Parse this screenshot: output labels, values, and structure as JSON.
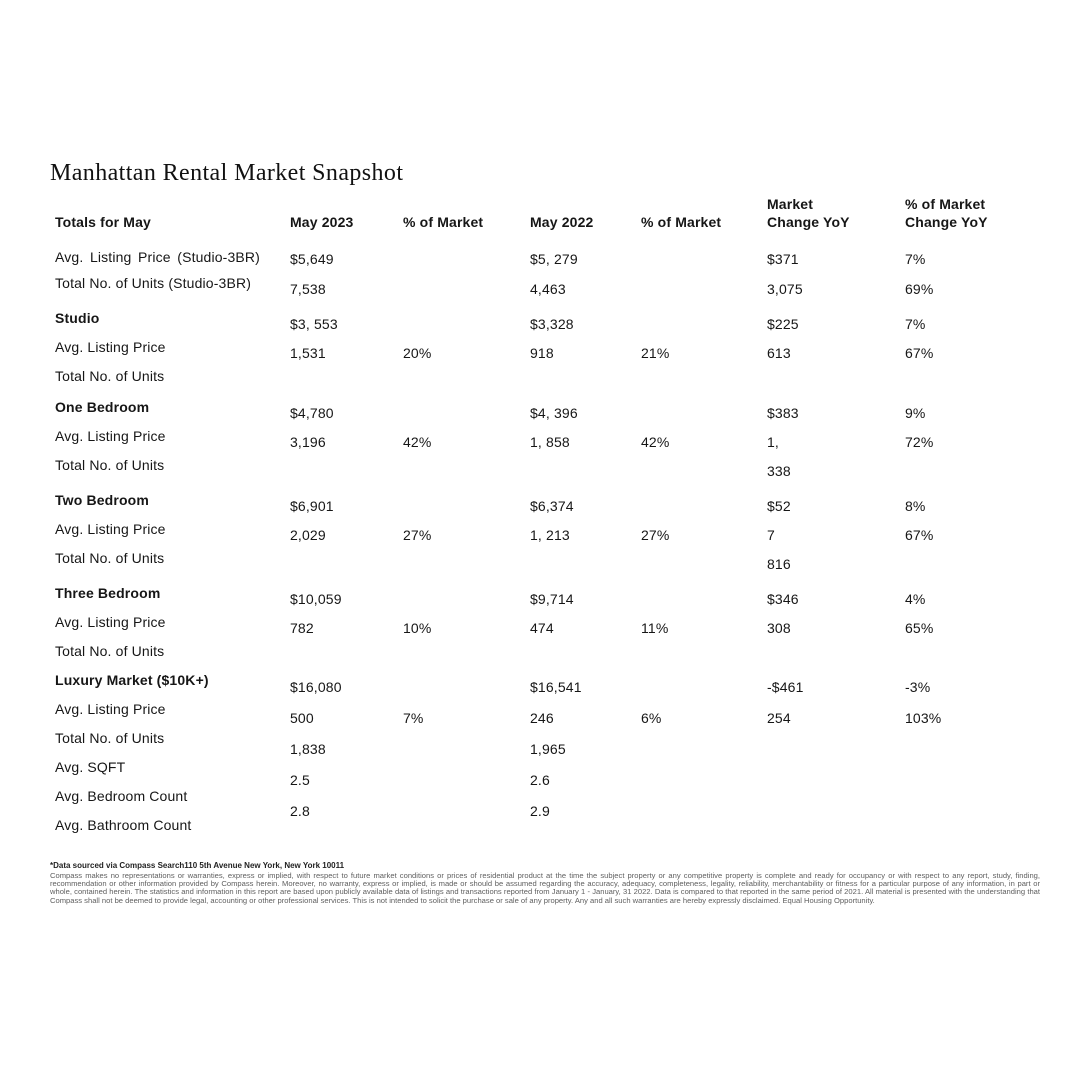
{
  "title": "Manhattan Rental Market Snapshot",
  "header": {
    "label": "Totals for May",
    "may2023": "May 2023",
    "pct2023": "% of Market",
    "may2022": "May 2022",
    "pct2022": "% of Market",
    "change": "Market Change YoY",
    "pct_change": "% of Market Change YoY"
  },
  "totals": {
    "label": "Avg. Listing Price (Studio-3BR) Total No. of Units (Studio-3BR)",
    "rows": [
      [
        "$5,649",
        "",
        "$5, 279",
        "",
        "$371",
        "7%"
      ],
      [
        "7,538",
        "",
        "4,463",
        "",
        "3,075",
        "69%"
      ]
    ]
  },
  "sections": [
    {
      "name": "Studio",
      "labels": [
        "Avg. Listing Price",
        "Total No. of Units"
      ],
      "rows": [
        [
          "$3, 553",
          "",
          "$3,328",
          "",
          "$225",
          "7%"
        ],
        [
          "1,531",
          "20%",
          "918",
          "21%",
          "613",
          "67%"
        ]
      ]
    },
    {
      "name": "One Bedroom",
      "labels": [
        "Avg. Listing Price",
        "Total No. of Units"
      ],
      "rows": [
        [
          "$4,780",
          "",
          "$4, 396",
          "",
          "$383",
          "9%"
        ],
        [
          "3,196",
          "42%",
          "1, 858",
          "42%",
          "1,",
          "72%"
        ],
        [
          "",
          "",
          "",
          "",
          "338",
          ""
        ]
      ]
    },
    {
      "name": "Two Bedroom",
      "labels": [
        "Avg. Listing Price",
        "Total No. of Units"
      ],
      "rows": [
        [
          "$6,901",
          "",
          "$6,374",
          "",
          "$52",
          "8%"
        ],
        [
          "2,029",
          "27%",
          "1, 213",
          "27%",
          "7",
          "67%"
        ],
        [
          "",
          "",
          "",
          "",
          "816",
          ""
        ]
      ]
    },
    {
      "name": "Three Bedroom",
      "labels": [
        "Avg. Listing Price",
        "Total No. of Units"
      ],
      "rows": [
        [
          "$10,059",
          "",
          "$9,714",
          "",
          "$346",
          "4%"
        ],
        [
          "782",
          "10%",
          "474",
          "11%",
          "308",
          "65%"
        ]
      ]
    },
    {
      "name": "Luxury Market ($10K+)",
      "labels": [
        "Avg. Listing Price",
        "Total No. of Units",
        "Avg. SQFT",
        "Avg. Bedroom Count",
        "Avg. Bathroom Count"
      ],
      "rows": [
        [
          "$16,080",
          "",
          "$16,541",
          "",
          "-$461",
          "-3%"
        ],
        [
          "500",
          "7%",
          "246",
          "6%",
          "254",
          "103%"
        ],
        [
          "1,838",
          "",
          "1,965",
          "",
          "",
          ""
        ],
        [
          "2.5",
          "",
          "2.6",
          "",
          "",
          ""
        ],
        [
          "2.8",
          "",
          "2.9",
          "",
          "",
          ""
        ]
      ]
    }
  ],
  "footer": {
    "source": "*Data sourced via Compass Search110 5th Avenue New York, New York 10011",
    "disclaimer": "Compass makes no representations or warranties, express or implied, with respect to future market conditions or prices of residential product at the time the subject property or any competitive property is complete and ready for occupancy or with respect to any report, study, finding, recommendation or other information provided by Compass herein. Moreover, no warranty, express or implied, is made or should be assumed regarding the accuracy, adequacy, completeness, legality, reliability, merchantability or fitness for a particular purpose of any information, in part or whole, contained herein. The statistics and information in this report are based upon publicly available data of listings and transactions reported from January 1 - January, 31 2022. Data is compared to that reported in the same period of 2021. All material is presented with the understanding that Compass shall not be deemed to provide legal, accounting or other professional services. This is not intended to solicit the purchase or sale of any property. Any and all such warranties are hereby expressly disclaimed. Equal Housing Opportunity."
  }
}
